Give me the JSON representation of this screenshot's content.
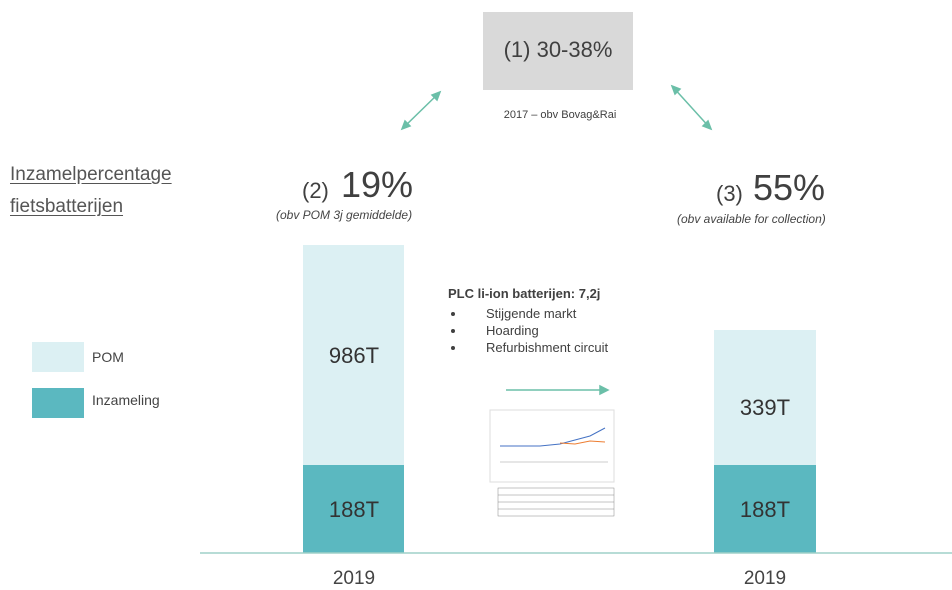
{
  "title": [
    "Inzamelpercentage",
    "fietsbatterijen"
  ],
  "top_box": {
    "label": "(1) 30-38%",
    "note": "2017 – obv Bovag&Rai"
  },
  "left": {
    "prefix": "(2)",
    "value": "19%",
    "note": "(obv POM 3j gemiddelde)",
    "top": "986T",
    "bottom": "188T",
    "year": "2019"
  },
  "right": {
    "prefix": "(3)",
    "value": "55%",
    "note": "(obv available for collection)",
    "top": "339T",
    "bottom": "188T",
    "year": "2019"
  },
  "legend": [
    "POM",
    "Inzameling"
  ],
  "plc": {
    "heading": "PLC li-ion batterijen: 7,2j",
    "bullets": [
      "Stijgende markt",
      "Hoarding",
      "Refurbishment circuit"
    ]
  }
}
